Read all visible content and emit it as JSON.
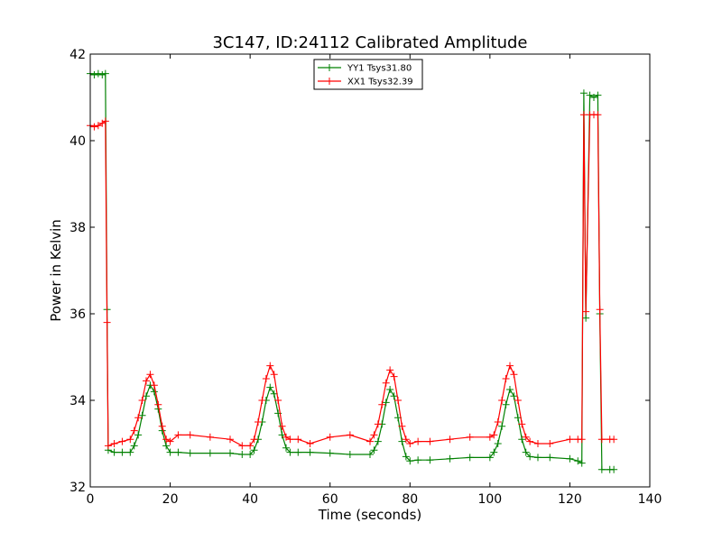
{
  "chart_data": {
    "type": "line",
    "title": "3C147, ID:24112 Calibrated Amplitude",
    "xlabel": "Time (seconds)",
    "ylabel": "Power in Kelvin",
    "xlim": [
      0,
      140
    ],
    "ylim": [
      32,
      42
    ],
    "xticks": [
      "0",
      "20",
      "40",
      "60",
      "80",
      "100",
      "120",
      "140"
    ],
    "yticks": [
      "32",
      "34",
      "36",
      "38",
      "40",
      "42"
    ],
    "grid": false,
    "legend_position": "top-center",
    "series": [
      {
        "name": "YY1 Tsys31.80",
        "color": "#008000",
        "marker": "+",
        "x": [
          0,
          1,
          2,
          3,
          3.8,
          4.2,
          4.5,
          6,
          8,
          10,
          11,
          12,
          13,
          14,
          15,
          16,
          17,
          18,
          19,
          20,
          22,
          25,
          30,
          35,
          38,
          40,
          41,
          42,
          43,
          44,
          45,
          46,
          47,
          48,
          49,
          50,
          52,
          55,
          60,
          65,
          70,
          71,
          72,
          73,
          74,
          75,
          76,
          77,
          78,
          79,
          80,
          82,
          85,
          90,
          95,
          100,
          101,
          102,
          103,
          104,
          105,
          106,
          107,
          108,
          109,
          110,
          112,
          115,
          120,
          122,
          123,
          123.5,
          124,
          125,
          126,
          127,
          127.5,
          128,
          130,
          131
        ],
        "y": [
          41.55,
          41.52,
          41.55,
          41.52,
          41.55,
          36.1,
          32.85,
          32.8,
          32.8,
          32.8,
          32.95,
          33.2,
          33.65,
          34.1,
          34.35,
          34.2,
          33.8,
          33.3,
          32.95,
          32.8,
          32.8,
          32.78,
          32.78,
          32.78,
          32.75,
          32.75,
          32.85,
          33.1,
          33.5,
          34.0,
          34.3,
          34.15,
          33.7,
          33.2,
          32.9,
          32.8,
          32.8,
          32.8,
          32.78,
          32.75,
          32.75,
          32.85,
          33.05,
          33.45,
          33.95,
          34.25,
          34.1,
          33.6,
          33.05,
          32.7,
          32.6,
          32.62,
          32.62,
          32.65,
          32.68,
          32.68,
          32.8,
          33.0,
          33.4,
          33.9,
          34.25,
          34.1,
          33.6,
          33.1,
          32.8,
          32.7,
          32.68,
          32.68,
          32.65,
          32.6,
          32.55,
          41.1,
          35.9,
          41.05,
          41.0,
          41.05,
          36.0,
          32.4,
          32.4,
          32.4
        ]
      },
      {
        "name": "XX1 Tsys32.39",
        "color": "#ff0000",
        "marker": "+",
        "x": [
          0,
          1,
          2,
          3,
          3.8,
          4.2,
          4.5,
          6,
          8,
          10,
          11,
          12,
          13,
          14,
          15,
          16,
          17,
          18,
          19,
          20,
          22,
          25,
          30,
          35,
          38,
          40,
          41,
          42,
          43,
          44,
          45,
          46,
          47,
          48,
          49,
          50,
          52,
          55,
          60,
          65,
          70,
          71,
          72,
          73,
          74,
          75,
          76,
          77,
          78,
          79,
          80,
          82,
          85,
          90,
          95,
          100,
          101,
          102,
          103,
          104,
          105,
          106,
          107,
          108,
          109,
          110,
          112,
          115,
          120,
          122,
          123,
          123.5,
          124,
          125,
          126,
          127,
          127.5,
          128,
          130,
          131
        ],
        "y": [
          40.35,
          40.32,
          40.35,
          40.4,
          40.45,
          35.8,
          32.95,
          33.0,
          33.05,
          33.1,
          33.3,
          33.6,
          34.0,
          34.45,
          34.6,
          34.35,
          33.9,
          33.4,
          33.1,
          33.05,
          33.2,
          33.2,
          33.15,
          33.1,
          32.95,
          32.95,
          33.1,
          33.5,
          34.0,
          34.5,
          34.8,
          34.6,
          34.0,
          33.4,
          33.15,
          33.1,
          33.1,
          33.0,
          33.15,
          33.2,
          33.05,
          33.2,
          33.45,
          33.9,
          34.4,
          34.7,
          34.55,
          34.0,
          33.4,
          33.1,
          33.0,
          33.05,
          33.05,
          33.1,
          33.15,
          33.15,
          33.2,
          33.5,
          34.0,
          34.5,
          34.8,
          34.6,
          34.0,
          33.45,
          33.15,
          33.05,
          33.0,
          33.0,
          33.1,
          33.1,
          33.1,
          40.6,
          36.05,
          40.6,
          40.6,
          40.6,
          36.1,
          33.1,
          33.1,
          33.1
        ]
      }
    ]
  }
}
